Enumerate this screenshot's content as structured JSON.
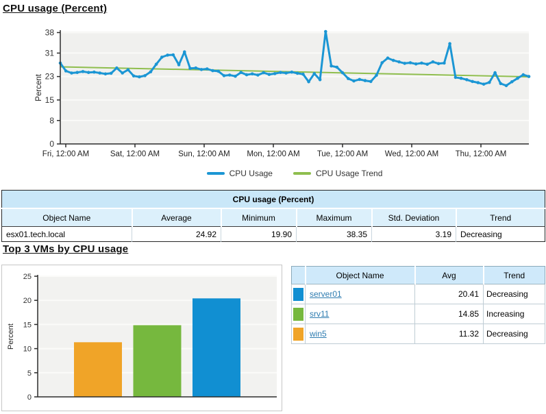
{
  "sections": {
    "usage_title": "CPU usage (Percent)",
    "top_vms_title": "Top 3 VMs by CPU usage"
  },
  "chart_data": [
    {
      "type": "line",
      "title": "CPU usage (Percent)",
      "xlabel": "",
      "ylabel": "Percent",
      "ylim": [
        0,
        38.35
      ],
      "yticks": [
        0,
        8,
        15,
        23,
        31,
        38
      ],
      "xtick_labels": [
        "Fri, 12:00 AM",
        "Sat, 12:00 AM",
        "Sun, 12:00 AM",
        "Mon, 12:00 AM",
        "Tue, 12:00 AM",
        "Wed, 12:00 AM",
        "Thu, 12:00 AM"
      ],
      "sample_interval_hours": 2,
      "grid": true,
      "legend_position": "bottom",
      "series": [
        {
          "name": "CPU Usage",
          "color": "#1b96d4",
          "values": [
            27.6,
            24.9,
            24.2,
            24.4,
            24.7,
            24.4,
            24.5,
            24.2,
            23.9,
            24.1,
            25.9,
            24.2,
            25.3,
            23.2,
            22.9,
            23.3,
            24.6,
            27.2,
            29.6,
            30.3,
            30.4,
            27.0,
            31.4,
            25.8,
            25.9,
            25.4,
            25.6,
            25.0,
            24.8,
            23.3,
            23.5,
            23.1,
            24.4,
            23.6,
            23.9,
            23.5,
            24.3,
            23.7,
            24.0,
            24.4,
            24.2,
            24.5,
            24.1,
            23.8,
            21.2,
            24.0,
            21.9,
            38.35,
            26.6,
            26.2,
            24.3,
            22.3,
            21.5,
            22.0,
            21.6,
            21.3,
            23.4,
            27.7,
            29.3,
            28.5,
            28.0,
            27.5,
            27.7,
            27.3,
            27.6,
            27.2,
            28.0,
            27.4,
            27.6,
            34.2,
            22.7,
            22.4,
            21.9,
            21.3,
            20.9,
            20.4,
            21.0,
            24.3,
            20.6,
            19.9,
            21.2,
            22.4,
            23.6,
            23.0
          ]
        },
        {
          "name": "CPU Usage Trend",
          "color": "#8fbe4e",
          "trend_endpoints": [
            26.3,
            22.9
          ]
        }
      ]
    },
    {
      "type": "bar",
      "title": "Top 3 VMs by CPU usage",
      "xlabel": "",
      "ylabel": "Percent",
      "ylim": [
        0,
        25
      ],
      "yticks": [
        0,
        5,
        10,
        15,
        20,
        25
      ],
      "grid": true,
      "categories": [
        "win5",
        "srv11",
        "server01"
      ],
      "values": [
        11.32,
        14.85,
        20.41
      ],
      "colors": [
        "#f0a428",
        "#76b83e",
        "#118fd2"
      ]
    }
  ],
  "summary_table": {
    "title": "CPU usage (Percent)",
    "columns": [
      "Object Name",
      "Average",
      "Minimum",
      "Maximum",
      "Std. Deviation",
      "Trend"
    ],
    "rows": [
      {
        "object": "esx01.tech.local",
        "average": "24.92",
        "minimum": "19.90",
        "maximum": "38.35",
        "std_deviation": "3.19",
        "trend": "Decreasing"
      }
    ]
  },
  "top_vms_table": {
    "columns": [
      "",
      "Object Name",
      "Avg",
      "Trend"
    ],
    "rows": [
      {
        "color": "#118fd2",
        "object": "server01",
        "avg": "20.41",
        "trend": "Decreasing"
      },
      {
        "color": "#76b83e",
        "object": "srv11",
        "avg": "14.85",
        "trend": "Increasing"
      },
      {
        "color": "#f0a428",
        "object": "win5",
        "avg": "11.32",
        "trend": "Decreasing"
      }
    ]
  }
}
